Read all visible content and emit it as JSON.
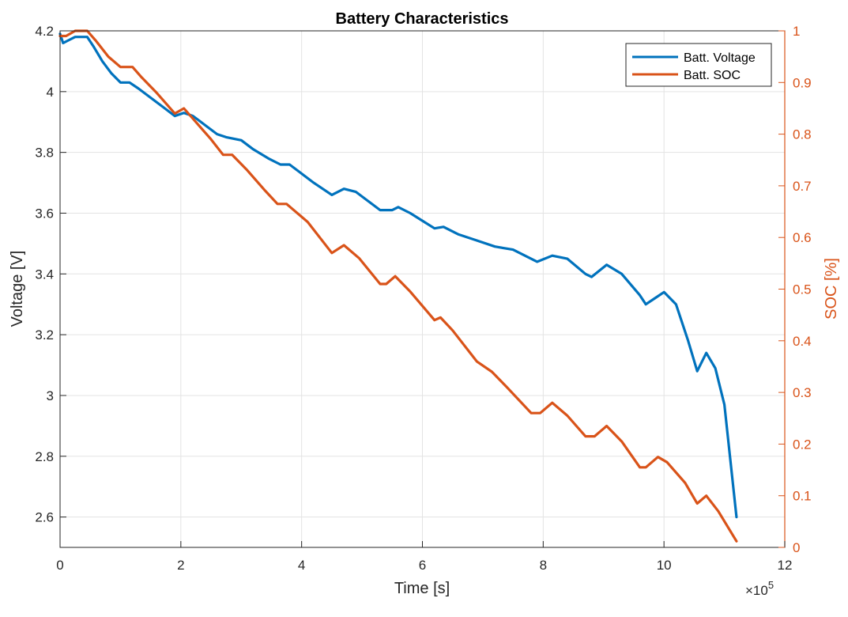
{
  "chart_data": {
    "type": "line",
    "title": "Battery Characteristics",
    "xlabel": "Time [s]",
    "ylabel_left": "Voltage [V]",
    "ylabel_right": "SOC [%]",
    "x_exponent_label": "×10",
    "x_exponent_power": "5",
    "xlim": [
      0,
      12
    ],
    "ylim_left": [
      2.5,
      4.2
    ],
    "ylim_right": [
      0,
      1
    ],
    "grid": true,
    "legend_position": "top-right",
    "x_ticks": [
      "0",
      "2",
      "4",
      "6",
      "8",
      "10",
      "12"
    ],
    "y_left_ticks": [
      "2.6",
      "2.8",
      "3",
      "3.2",
      "3.4",
      "3.6",
      "3.8",
      "4",
      "4.2"
    ],
    "y_right_ticks": [
      "0",
      "0.1",
      "0.2",
      "0.3",
      "0.4",
      "0.5",
      "0.6",
      "0.7",
      "0.8",
      "0.9",
      "1"
    ],
    "colors": {
      "voltage": "#0072BD",
      "soc": "#D95319"
    },
    "series": [
      {
        "name": "Batt. Voltage",
        "axis": "left",
        "x": [
          0,
          0.05,
          0.15,
          0.25,
          0.35,
          0.45,
          0.55,
          0.7,
          0.85,
          1.0,
          1.15,
          1.3,
          1.5,
          1.7,
          1.9,
          2.05,
          2.2,
          2.4,
          2.6,
          2.75,
          3.0,
          3.2,
          3.45,
          3.65,
          3.8,
          4.0,
          4.2,
          4.5,
          4.7,
          4.9,
          5.1,
          5.3,
          5.5,
          5.6,
          5.8,
          6.0,
          6.2,
          6.35,
          6.6,
          6.9,
          7.2,
          7.5,
          7.9,
          8.15,
          8.4,
          8.7,
          8.8,
          9.05,
          9.3,
          9.6,
          9.7,
          9.85,
          10.0,
          10.2,
          10.4,
          10.55,
          10.7,
          10.85,
          11.0,
          11.2
        ],
        "y": [
          4.19,
          4.16,
          4.17,
          4.18,
          4.18,
          4.18,
          4.15,
          4.1,
          4.06,
          4.03,
          4.03,
          4.01,
          3.98,
          3.95,
          3.92,
          3.93,
          3.92,
          3.89,
          3.86,
          3.85,
          3.84,
          3.81,
          3.78,
          3.76,
          3.76,
          3.73,
          3.7,
          3.66,
          3.68,
          3.67,
          3.64,
          3.61,
          3.61,
          3.62,
          3.6,
          3.575,
          3.55,
          3.555,
          3.53,
          3.51,
          3.49,
          3.48,
          3.44,
          3.46,
          3.45,
          3.4,
          3.39,
          3.43,
          3.4,
          3.33,
          3.3,
          3.32,
          3.34,
          3.3,
          3.18,
          3.08,
          3.14,
          3.09,
          2.97,
          2.6
        ]
      },
      {
        "name": "Batt. SOC",
        "axis": "right",
        "x": [
          0,
          0.1,
          0.25,
          0.45,
          0.6,
          0.8,
          1.0,
          1.2,
          1.35,
          1.6,
          1.9,
          2.05,
          2.2,
          2.5,
          2.7,
          2.85,
          3.1,
          3.4,
          3.6,
          3.75,
          3.85,
          4.1,
          4.5,
          4.7,
          4.95,
          5.3,
          5.4,
          5.55,
          5.8,
          6.2,
          6.3,
          6.5,
          6.9,
          7.15,
          7.4,
          7.8,
          7.95,
          8.15,
          8.4,
          8.7,
          8.85,
          9.05,
          9.3,
          9.6,
          9.7,
          9.9,
          10.05,
          10.35,
          10.55,
          10.7,
          10.9,
          11.2
        ],
        "y": [
          0.99,
          0.99,
          1.0,
          1.0,
          0.98,
          0.95,
          0.93,
          0.93,
          0.91,
          0.88,
          0.84,
          0.85,
          0.83,
          0.79,
          0.76,
          0.76,
          0.73,
          0.69,
          0.665,
          0.665,
          0.655,
          0.63,
          0.57,
          0.585,
          0.56,
          0.51,
          0.51,
          0.525,
          0.495,
          0.44,
          0.445,
          0.42,
          0.36,
          0.34,
          0.31,
          0.26,
          0.26,
          0.28,
          0.255,
          0.215,
          0.215,
          0.235,
          0.205,
          0.155,
          0.155,
          0.175,
          0.165,
          0.125,
          0.085,
          0.1,
          0.07,
          0.012
        ]
      }
    ]
  }
}
